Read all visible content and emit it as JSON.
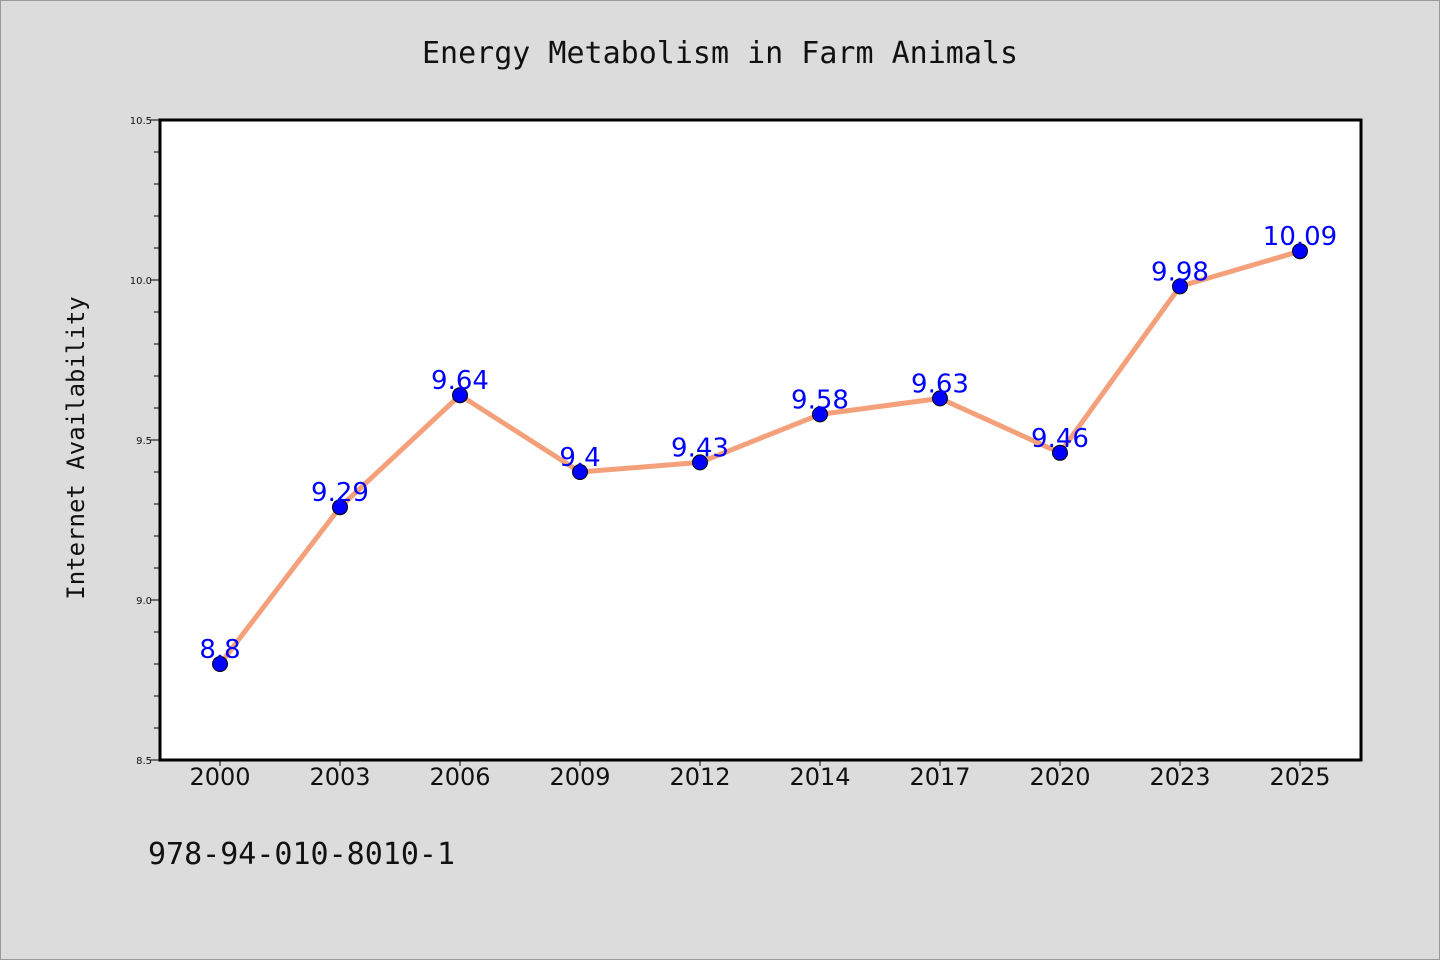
{
  "chart_data": {
    "type": "line",
    "title": "Energy Metabolism in Farm Animals",
    "xlabel": "",
    "ylabel": "Internet Availability",
    "categories": [
      "2000",
      "2003",
      "2006",
      "2009",
      "2012",
      "2014",
      "2017",
      "2020",
      "2023",
      "2025"
    ],
    "values": [
      8.8,
      9.29,
      9.64,
      9.4,
      9.43,
      9.58,
      9.63,
      9.46,
      9.98,
      10.09
    ],
    "data_labels": [
      "8.8",
      "9.29",
      "9.64",
      "9.4",
      "9.43",
      "9.58",
      "9.63",
      "9.46",
      "9.98",
      "10.09"
    ],
    "ylim": [
      8.5,
      10.5
    ],
    "yticks": [
      "8.5",
      "9.0",
      "9.5",
      "10.0",
      "10.5"
    ],
    "grid": false,
    "line_color": "#f4a07a",
    "marker_color": "#0000ff",
    "label_color": "#0000ff"
  },
  "footer": {
    "code": "978-94-010-8010-1"
  }
}
